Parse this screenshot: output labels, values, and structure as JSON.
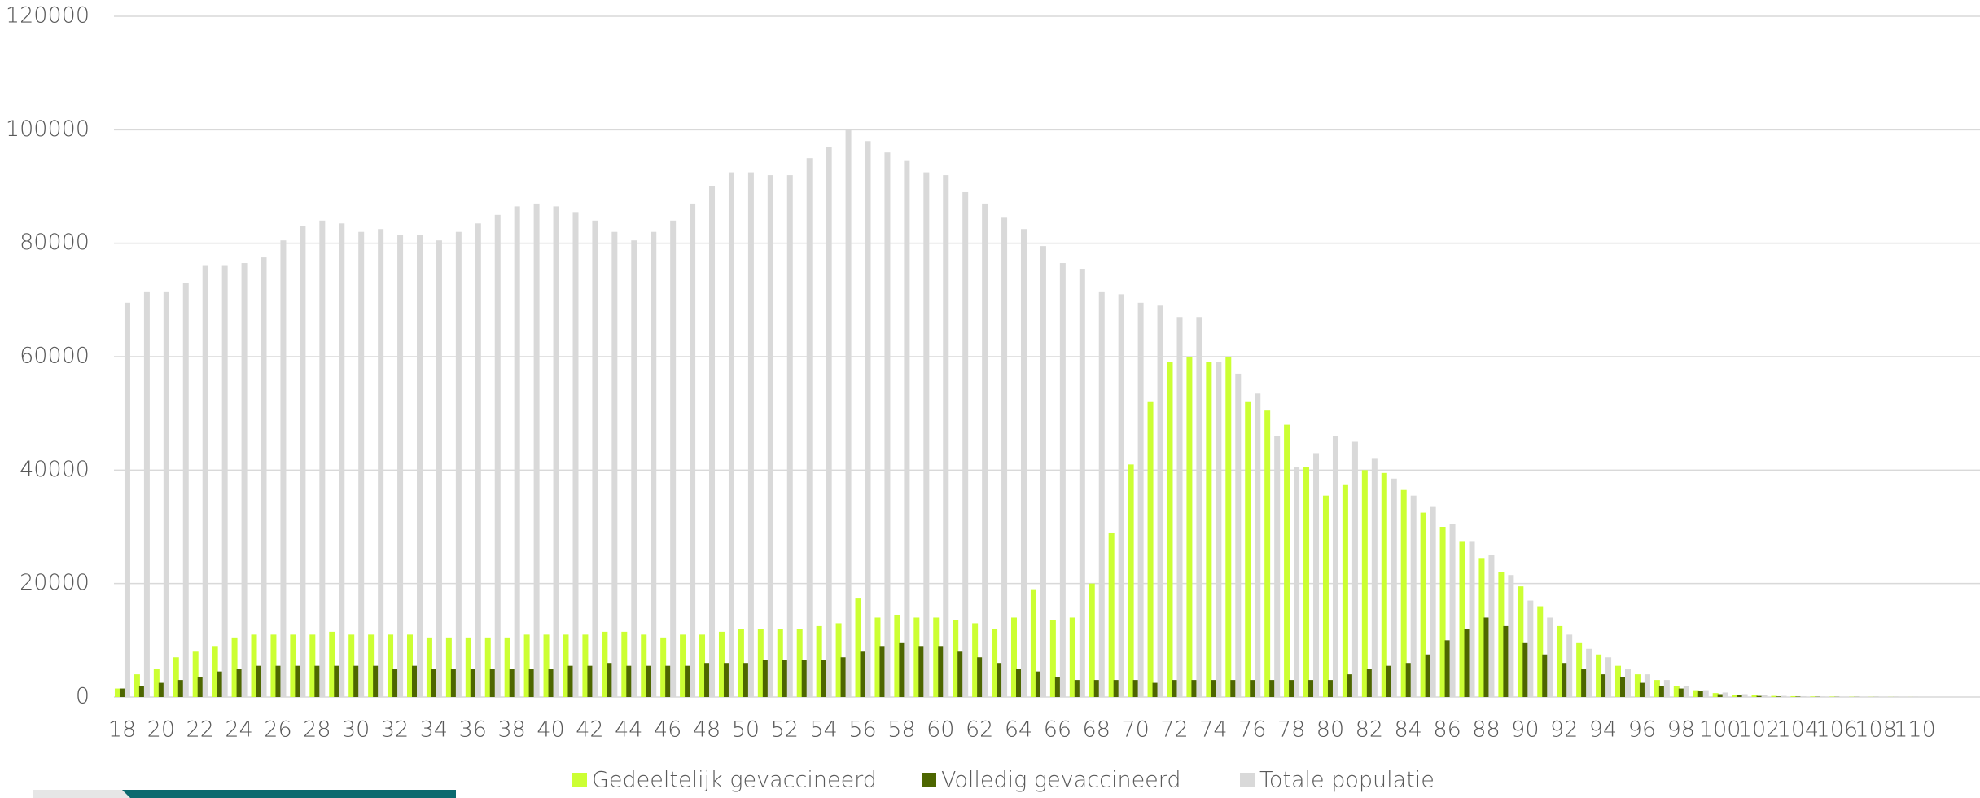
{
  "chart_data": {
    "type": "bar",
    "categories": [
      18,
      null,
      20,
      null,
      22,
      null,
      24,
      null,
      26,
      null,
      28,
      null,
      30,
      null,
      32,
      null,
      34,
      null,
      36,
      null,
      38,
      null,
      40,
      null,
      42,
      null,
      44,
      null,
      46,
      null,
      48,
      null,
      50,
      null,
      52,
      null,
      54,
      null,
      56,
      null,
      58,
      null,
      60,
      null,
      62,
      null,
      64,
      null,
      66,
      null,
      68,
      null,
      70,
      null,
      72,
      null,
      74,
      null,
      76,
      null,
      78,
      null,
      80,
      null,
      82,
      null,
      84,
      null,
      86,
      null,
      88,
      null,
      90,
      null,
      92,
      null,
      94,
      null,
      96,
      null,
      98,
      null,
      100,
      null,
      102,
      null,
      104,
      null,
      106,
      null,
      108,
      null,
      110
    ],
    "series": [
      {
        "name": "Gedeeltelijk gevaccineerd",
        "color": "#ccff33",
        "values": [
          1500,
          4000,
          5000,
          7000,
          8000,
          9000,
          10500,
          11000,
          11000,
          11000,
          11000,
          11500,
          11000,
          11000,
          11000,
          11000,
          10500,
          10500,
          10500,
          10500,
          10500,
          11000,
          11000,
          11000,
          11000,
          11500,
          11500,
          11000,
          10500,
          11000,
          11000,
          11500,
          12000,
          12000,
          12000,
          12000,
          12500,
          13000,
          17500,
          14000,
          14500,
          14000,
          14000,
          13500,
          13000,
          12000,
          14000,
          19000,
          13500,
          14000,
          20000,
          29000,
          41000,
          52000,
          59000,
          60000,
          59000,
          60000,
          52000,
          50500,
          48000,
          40500,
          35500,
          37500,
          40000,
          39500,
          36500,
          32500,
          30000,
          27500,
          24500,
          22000,
          19500,
          16000,
          12500,
          9500,
          7500,
          5500,
          4000,
          3000,
          2000,
          1200,
          700,
          400,
          300,
          200,
          150,
          100,
          80,
          50,
          30,
          20,
          10
        ]
      },
      {
        "name": "Volledig gevaccineerd",
        "color": "#4d6600",
        "values": [
          1500,
          2000,
          2500,
          3000,
          3500,
          4500,
          5000,
          5500,
          5500,
          5500,
          5500,
          5500,
          5500,
          5500,
          5000,
          5500,
          5000,
          5000,
          5000,
          5000,
          5000,
          5000,
          5000,
          5500,
          5500,
          6000,
          5500,
          5500,
          5500,
          5500,
          6000,
          6000,
          6000,
          6500,
          6500,
          6500,
          6500,
          7000,
          8000,
          9000,
          9500,
          9000,
          9000,
          8000,
          7000,
          6000,
          5000,
          4500,
          3500,
          3000,
          3000,
          3000,
          3000,
          2500,
          3000,
          3000,
          3000,
          3000,
          3000,
          3000,
          3000,
          3000,
          3000,
          4000,
          5000,
          5500,
          6000,
          7500,
          10000,
          12000,
          14000,
          12500,
          9500,
          7500,
          6000,
          5000,
          4000,
          3500,
          2500,
          2000,
          1500,
          1000,
          500,
          300,
          200,
          100,
          80,
          50,
          30,
          20,
          10,
          5,
          2
        ]
      },
      {
        "name": "Totale populatie",
        "color": "#d9d9d9",
        "values": [
          69500,
          71500,
          71500,
          73000,
          76000,
          76000,
          76500,
          77500,
          80500,
          83000,
          84000,
          83500,
          82000,
          82500,
          81500,
          81500,
          80500,
          82000,
          83500,
          85000,
          86500,
          87000,
          86500,
          85500,
          84000,
          82000,
          80500,
          82000,
          84000,
          87000,
          90000,
          92500,
          92500,
          92000,
          92000,
          95000,
          97000,
          100000,
          98000,
          96000,
          94500,
          92500,
          92000,
          89000,
          87000,
          84500,
          82500,
          79500,
          76500,
          75500,
          71500,
          71000,
          69500,
          69000,
          67000,
          67000,
          59000,
          57000,
          53500,
          46000,
          40500,
          43000,
          46000,
          45000,
          42000,
          38500,
          35500,
          33500,
          30500,
          27500,
          25000,
          21500,
          17000,
          14000,
          11000,
          8500,
          7000,
          5000,
          4000,
          3000,
          2000,
          1200,
          800,
          500,
          300,
          200,
          150,
          100,
          80,
          50,
          30,
          20,
          10
        ]
      }
    ],
    "ylim": [
      0,
      120000
    ],
    "yticks": [
      0,
      20000,
      40000,
      60000,
      80000,
      100000,
      120000
    ],
    "grid": true,
    "legend": "bottom"
  }
}
